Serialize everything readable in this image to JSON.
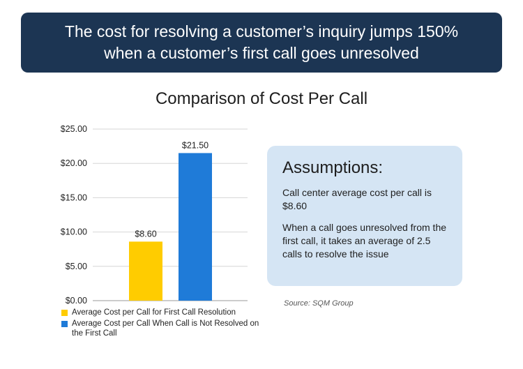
{
  "banner": {
    "line1": "The cost for resolving a customer’s inquiry jumps 150%",
    "line2": "when a customer’s first call goes unresolved"
  },
  "chart_data": {
    "type": "bar",
    "title": "Comparison of Cost Per Call",
    "categories": [
      "Average Cost per Call for First Call Resolution",
      "Average Cost per Call When Call is Not Resolved on the First Call"
    ],
    "values": [
      8.6,
      21.5
    ],
    "value_labels": [
      "$8.60",
      "$21.50"
    ],
    "colors": [
      "#ffcc00",
      "#1f7bd8"
    ],
    "ylim": [
      0,
      25
    ],
    "yticks": [
      "$0.00",
      "$5.00",
      "$10.00",
      "$15.00",
      "$20.00",
      "$25.00"
    ],
    "grid": true,
    "legend_position": "bottom-left",
    "xlabel": "",
    "ylabel": ""
  },
  "assumptions": {
    "heading": "Assumptions:",
    "p1": "Call center average cost per call is $8.60",
    "p2": "When a call goes unresolved from the first call, it takes an average of 2.5 calls to resolve the issue"
  },
  "source": "Source: SQM Group"
}
